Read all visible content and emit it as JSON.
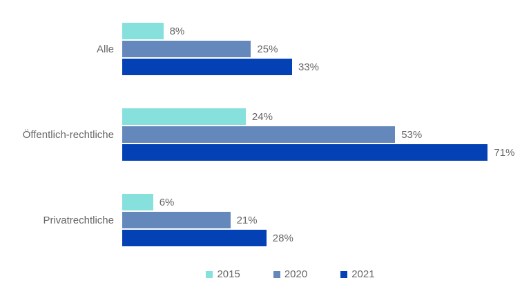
{
  "chart_data": {
    "type": "bar",
    "orientation": "horizontal",
    "title": "",
    "categories": [
      "Alle",
      "Öffentlich-rechtliche",
      "Privatrechtliche"
    ],
    "series": [
      {
        "name": "2015",
        "color": "#86E0DC",
        "values": [
          8,
          24,
          6
        ]
      },
      {
        "name": "2020",
        "color": "#6588BC",
        "values": [
          25,
          53,
          21
        ]
      },
      {
        "name": "2021",
        "color": "#0341B4",
        "values": [
          33,
          71,
          28
        ]
      }
    ],
    "value_suffix": "%",
    "xlim": [
      0,
      79.4
    ],
    "grid": false,
    "axis_visible": false,
    "legend_position": "bottom",
    "text_color": "#666666",
    "background_color": "#FFFFFF"
  }
}
